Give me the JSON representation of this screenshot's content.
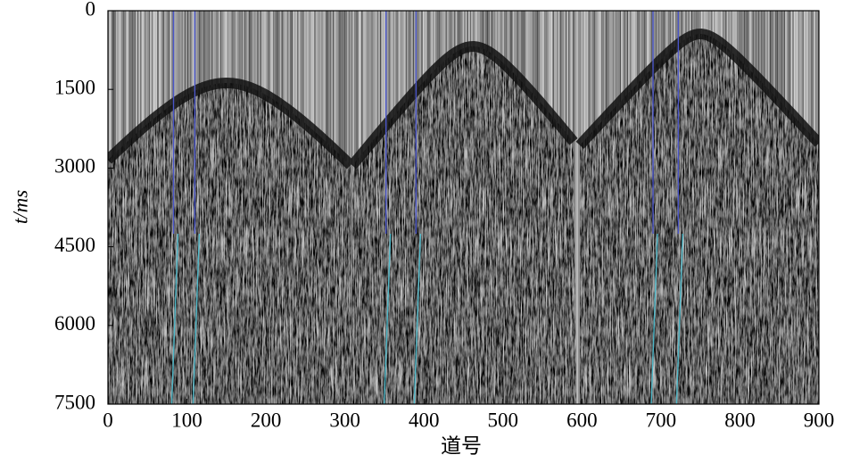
{
  "chart_data": {
    "type": "seismic",
    "x_label": "道号",
    "y_label": "t/ms",
    "xlim": [
      0,
      900
    ],
    "ylim": [
      7500,
      0
    ],
    "xticks": [
      0,
      100,
      200,
      300,
      400,
      500,
      600,
      700,
      800,
      900
    ],
    "yticks": [
      0,
      1500,
      3000,
      4500,
      6000,
      7500
    ]
  }
}
